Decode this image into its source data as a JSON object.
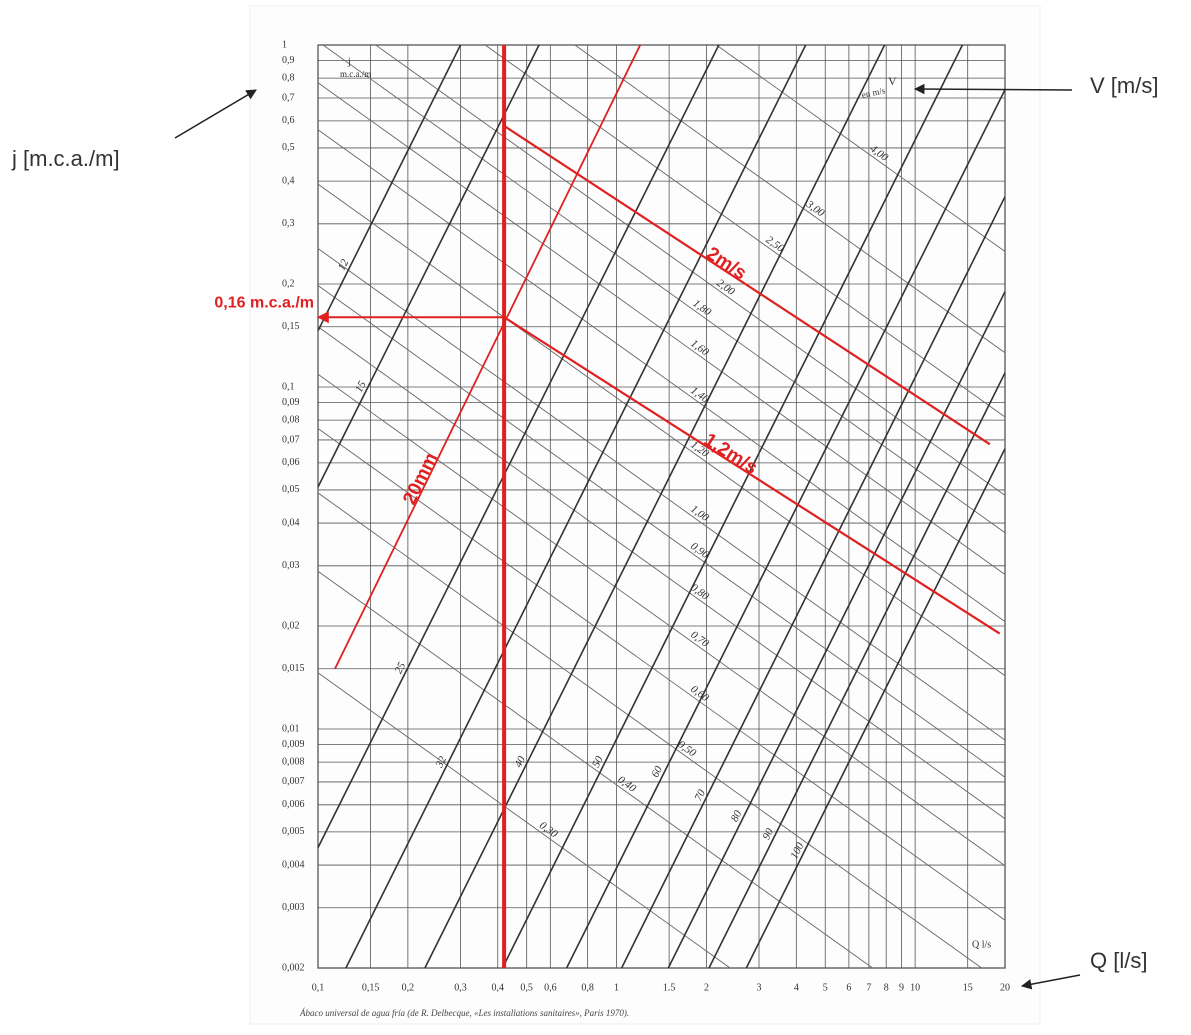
{
  "chart_data": {
    "type": "line",
    "xscale": "log",
    "yscale": "log",
    "xlim": [
      0.1,
      20
    ],
    "ylim": [
      0.002,
      1
    ],
    "grid": true,
    "grid_color": "#555555",
    "xticks": [
      {
        "value": 0.1,
        "label": "0,1"
      },
      {
        "value": 0.15,
        "label": "0,15"
      },
      {
        "value": 0.2,
        "label": "0,2"
      },
      {
        "value": 0.3,
        "label": "0,3"
      },
      {
        "value": 0.4,
        "label": "0,4"
      },
      {
        "value": 0.5,
        "label": "0,5"
      },
      {
        "value": 0.6,
        "label": "0,6"
      },
      {
        "value": 0.8,
        "label": "0,8"
      },
      1,
      1.5,
      2,
      3,
      4,
      5,
      6,
      7,
      8,
      9,
      10,
      15,
      20
    ],
    "yticks": [
      1,
      {
        "value": 0.9,
        "label": "0,9"
      },
      {
        "value": 0.8,
        "label": "0,8"
      },
      {
        "value": 0.7,
        "label": "0,7"
      },
      {
        "value": 0.6,
        "label": "0,6"
      },
      {
        "value": 0.5,
        "label": "0,5"
      },
      {
        "value": 0.4,
        "label": "0,4"
      },
      {
        "value": 0.3,
        "label": "0,3"
      },
      {
        "value": 0.2,
        "label": "0,2"
      },
      {
        "value": 0.15,
        "label": "0,15"
      },
      {
        "value": 0.1,
        "label": "0,1"
      },
      {
        "value": 0.09,
        "label": "0,09"
      },
      {
        "value": 0.08,
        "label": "0,08"
      },
      {
        "value": 0.07,
        "label": "0,07"
      },
      {
        "value": 0.06,
        "label": "0,06"
      },
      {
        "value": 0.05,
        "label": "0,05"
      },
      {
        "value": 0.04,
        "label": "0,04"
      },
      {
        "value": 0.03,
        "label": "0,03"
      },
      {
        "value": 0.02,
        "label": "0,02"
      },
      {
        "value": 0.015,
        "label": "0,015"
      },
      {
        "value": 0.01,
        "label": "0,01"
      },
      {
        "value": 0.009,
        "label": "0,009"
      },
      {
        "value": 0.008,
        "label": "0,008"
      },
      {
        "value": 0.007,
        "label": "0,007"
      },
      {
        "value": 0.006,
        "label": "0,006"
      },
      {
        "value": 0.005,
        "label": "0,005"
      },
      {
        "value": 0.004,
        "label": "0,004"
      },
      {
        "value": 0.003,
        "label": "0,003"
      },
      {
        "value": 0.002,
        "label": "0,002"
      }
    ],
    "diameter_lines": [
      {
        "name": "12",
        "color": "#333333",
        "x": [
          0.1,
          0.3
        ],
        "values": [
          0.146,
          1
        ]
      },
      {
        "name": "15",
        "color": "#333333",
        "x": [
          0.1,
          0.55
        ],
        "values": [
          0.051,
          1
        ]
      },
      {
        "name": "25",
        "color": "#333333",
        "x": [
          0.1,
          2.2
        ],
        "values": [
          0.0045,
          1
        ]
      },
      {
        "name": "32",
        "color": "#333333",
        "x": [
          0.124,
          4.3
        ],
        "values": [
          0.002,
          1
        ]
      },
      {
        "name": "40",
        "color": "#333333",
        "x": [
          0.228,
          7.9
        ],
        "values": [
          0.002,
          1
        ]
      },
      {
        "name": "50",
        "color": "#333333",
        "x": [
          0.415,
          14.4
        ],
        "values": [
          0.002,
          1
        ]
      },
      {
        "name": "60",
        "color": "#333333",
        "x": [
          0.68,
          20
        ],
        "values": [
          0.002,
          0.74
        ]
      },
      {
        "name": "70",
        "color": "#333333",
        "x": [
          1.04,
          20
        ],
        "values": [
          0.002,
          0.36
        ]
      },
      {
        "name": "80",
        "color": "#333333",
        "x": [
          1.49,
          20
        ],
        "values": [
          0.002,
          0.19
        ]
      },
      {
        "name": "90",
        "color": "#333333",
        "x": [
          2.04,
          20
        ],
        "values": [
          0.002,
          0.11
        ]
      },
      {
        "name": "100",
        "color": "#333333",
        "x": [
          2.72,
          20
        ],
        "values": [
          0.002,
          0.066
        ]
      }
    ],
    "velocity_lines": [
      {
        "name": "0,30",
        "color": "#666666",
        "x": [
          0.1,
          2.4
        ],
        "values": [
          0.0146,
          0.002
        ]
      },
      {
        "name": "0,40",
        "color": "#666666",
        "x": [
          0.1,
          7.2
        ],
        "values": [
          0.0289,
          0.002
        ]
      },
      {
        "name": "0,50",
        "color": "#666666",
        "x": [
          0.1,
          16.7
        ],
        "values": [
          0.049,
          0.002
        ]
      },
      {
        "name": "0,60",
        "color": "#666666",
        "x": [
          0.1,
          20
        ],
        "values": [
          0.0756,
          0.00276
        ]
      },
      {
        "name": "0,70",
        "color": "#666666",
        "x": [
          0.1,
          20
        ],
        "values": [
          0.109,
          0.00398
        ]
      },
      {
        "name": "0,80",
        "color": "#666666",
        "x": [
          0.1,
          20
        ],
        "values": [
          0.15,
          0.00546
        ]
      },
      {
        "name": "0,90",
        "color": "#666666",
        "x": [
          0.1,
          20
        ],
        "values": [
          0.198,
          0.00722
        ]
      },
      {
        "name": "1,00",
        "color": "#666666",
        "x": [
          0.1,
          20
        ],
        "values": [
          0.254,
          0.00928
        ]
      },
      {
        "name": "1,20",
        "color": "#666666",
        "x": [
          0.1,
          20
        ],
        "values": [
          0.392,
          0.0143
        ]
      },
      {
        "name": "1,40",
        "color": "#666666",
        "x": [
          0.1,
          20
        ],
        "values": [
          0.565,
          0.0206
        ]
      },
      {
        "name": "1,60",
        "color": "#666666",
        "x": [
          0.1,
          20
        ],
        "values": [
          0.776,
          0.0283
        ]
      },
      {
        "name": "1,80",
        "color": "#666666",
        "x": [
          0.104,
          20
        ],
        "values": [
          1,
          0.0375
        ]
      },
      {
        "name": "2,00",
        "color": "#666666",
        "x": [
          0.156,
          20
        ],
        "values": [
          1,
          0.0482
        ]
      },
      {
        "name": "2,50",
        "color": "#666666",
        "x": [
          0.363,
          20
        ],
        "values": [
          1,
          0.0817
        ]
      },
      {
        "name": "3,00",
        "color": "#666666",
        "x": [
          0.725,
          20
        ],
        "values": [
          1,
          0.126
        ]
      },
      {
        "name": "4,00",
        "color": "#666666",
        "x": [
          2.16,
          20
        ],
        "values": [
          1,
          0.249
        ]
      }
    ],
    "highlight_lines": [
      {
        "name": "20mm",
        "color": "#e02020",
        "x": [
          0.114,
          1.2
        ],
        "values": [
          0.015,
          1
        ]
      },
      {
        "name": "2m/s",
        "color": "#e02020",
        "x": [
          0.42,
          17.8
        ],
        "values": [
          0.58,
          0.068
        ]
      },
      {
        "name": "1,2m/s",
        "color": "#e02020",
        "x": [
          0.42,
          19.2
        ],
        "values": [
          0.16,
          0.019
        ]
      }
    ],
    "q_reading": {
      "color": "#e02020",
      "x": [
        0.42,
        0.42
      ],
      "values": [
        1,
        0.002
      ]
    },
    "j_reading": {
      "label": "0,16 m.c.a./m",
      "color": "#e02020",
      "x": [
        0.42,
        0.1
      ],
      "values": [
        0.16,
        0.16
      ]
    },
    "y_axis_label": "j [m.c.a./m]",
    "velocity_label": "V [m/s]",
    "x_axis_label": "Q [l/s]",
    "inner_labels": {
      "j": "j",
      "j_unit": "m.c.a./m",
      "v": "V",
      "v_unit": "en m/s",
      "q": "Q l/s"
    },
    "caption": "Ábaco universal de agua fría (de R. Delbecque, «Les installations sanitaires», Paris 1970)."
  }
}
